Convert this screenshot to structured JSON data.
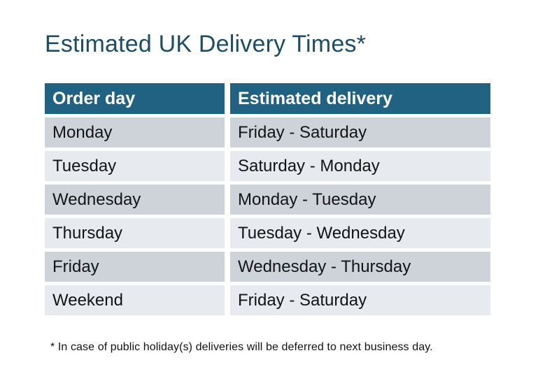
{
  "page": {
    "title": "Estimated UK Delivery Times*",
    "footnote": "* In case of public holiday(s) deliveries will be deferred to next business day."
  },
  "table": {
    "columns": {
      "order_day": "Order day",
      "estimated_delivery": "Estimated delivery"
    },
    "rows": [
      {
        "order_day": "Monday",
        "estimated_delivery": "Friday - Saturday"
      },
      {
        "order_day": "Tuesday",
        "estimated_delivery": "Saturday - Monday"
      },
      {
        "order_day": "Wednesday",
        "estimated_delivery": "Monday - Tuesday"
      },
      {
        "order_day": "Thursday",
        "estimated_delivery": "Tuesday - Wednesday"
      },
      {
        "order_day": "Friday",
        "estimated_delivery": "Wednesday - Thursday"
      },
      {
        "order_day": "Weekend",
        "estimated_delivery": "Friday - Saturday"
      }
    ]
  },
  "colors": {
    "header_bg": "#216283",
    "header_text": "#ffffff",
    "row_odd_bg": "#ced3da",
    "row_even_bg": "#e7eaee",
    "title_text": "#1d4d66",
    "body_text": "#141414",
    "page_bg": "#ffffff"
  }
}
